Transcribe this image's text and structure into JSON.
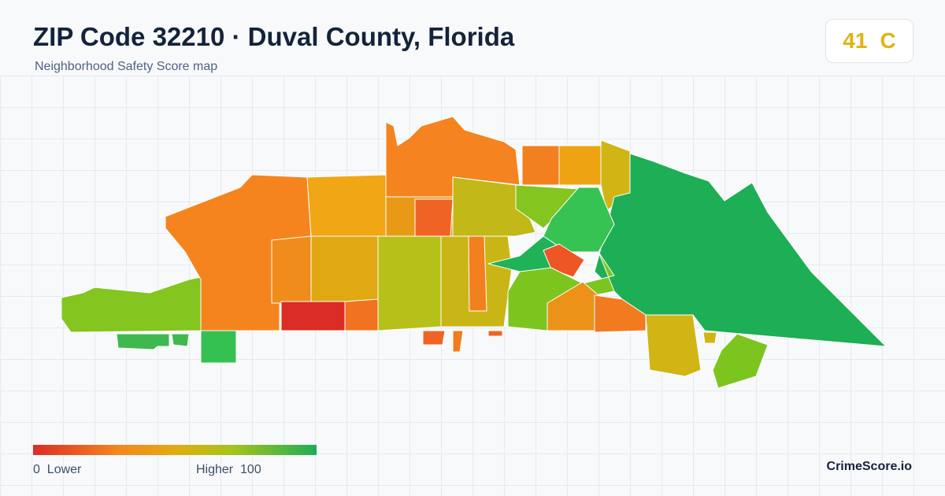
{
  "header": {
    "title": "ZIP Code 32210 · Duval County, Florida",
    "subtitle": "Neighborhood Safety Score map"
  },
  "score": {
    "value": 41,
    "grade": "C"
  },
  "legend": {
    "min": 0,
    "min_label": "Lower",
    "max_label": "Higher",
    "max": 100
  },
  "brand": "CrimeScore.io"
}
